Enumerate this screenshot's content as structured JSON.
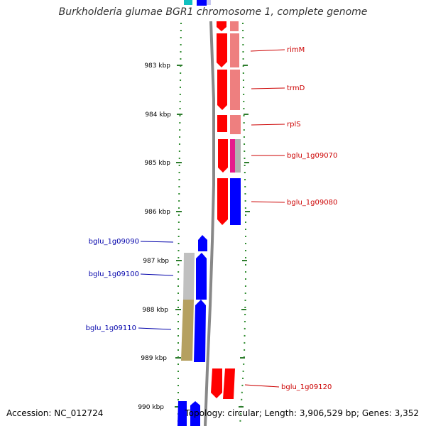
{
  "title": "Burkholderia glumae BGR1 chromosome 1, complete genome",
  "accession": "Accession: NC_012724",
  "topology": "Topology: circular; Length: 3,906,529 bp; Genes: 3,352",
  "ticks": [
    "983 kbp",
    "984 kbp",
    "985 kbp",
    "986 kbp",
    "987 kbp",
    "988 kbp",
    "989 kbp",
    "990 kbp"
  ],
  "genes_forward": [
    {
      "name": "rimM",
      "kind": "rna-pair",
      "colors": [
        "#ff0000",
        "#ee7f7f"
      ]
    },
    {
      "name": "trmD",
      "kind": "rna-pair",
      "colors": [
        "#ff0000",
        "#ee7f7f"
      ]
    },
    {
      "name": "rplS",
      "kind": "rna-pair",
      "colors": [
        "#ff0000",
        "#ee7f7f"
      ]
    },
    {
      "name": "bglu_1g09070",
      "kind": "cds",
      "colors": [
        "#ff0000",
        "#e6198c"
      ]
    },
    {
      "name": "bglu_1g09080",
      "kind": "cds",
      "colors": [
        "#ff0000",
        "#0000ff"
      ]
    },
    {
      "name": "bglu_1g09120",
      "kind": "cds",
      "colors": [
        "#ff0000",
        "#ff0000"
      ]
    }
  ],
  "genes_reverse": [
    {
      "name": "bglu_1g09090",
      "colors": [
        "#0000ff"
      ]
    },
    {
      "name": "bglu_1g09100",
      "colors": [
        "#0000ff",
        "#c0c0c0"
      ]
    },
    {
      "name": "bglu_1g09110",
      "colors": [
        "#0000ff",
        "#b5a060"
      ]
    }
  ],
  "colors": {
    "forward_label": "#cc0000",
    "reverse_label": "#0000aa",
    "backbone": "#888888",
    "gc_dots": "#2e8b2e",
    "tick": "#2e7d2e"
  }
}
